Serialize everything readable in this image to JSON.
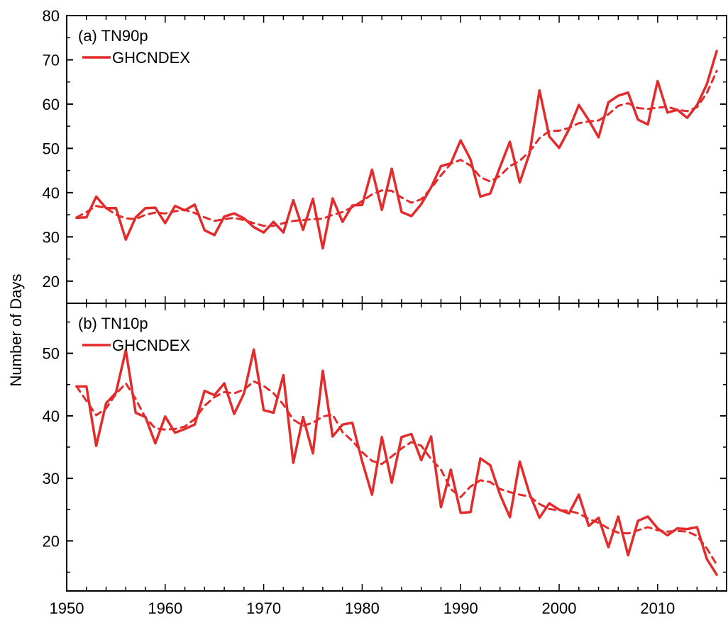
{
  "chart_data": {
    "type": "line",
    "ylabel": "Number of Days",
    "xlim": [
      1950,
      2017
    ],
    "x_ticks": [
      1950,
      1960,
      1970,
      1980,
      1990,
      2000,
      2010
    ],
    "line_color": "#e32b2b",
    "panels": [
      {
        "label": "(a) TN90p",
        "legend": "GHCNDEX",
        "ylim": [
          15,
          80
        ],
        "y_ticks": [
          20,
          30,
          40,
          50,
          60,
          70,
          80
        ],
        "series": [
          {
            "name": "GHCNDEX",
            "style": "solid",
            "x": [
              1951,
              1952,
              1953,
              1954,
              1955,
              1956,
              1957,
              1958,
              1959,
              1960,
              1961,
              1962,
              1963,
              1964,
              1965,
              1966,
              1967,
              1968,
              1969,
              1970,
              1971,
              1972,
              1973,
              1974,
              1975,
              1976,
              1977,
              1978,
              1979,
              1980,
              1981,
              1982,
              1983,
              1984,
              1985,
              1986,
              1987,
              1988,
              1989,
              1990,
              1991,
              1992,
              1993,
              1994,
              1995,
              1996,
              1997,
              1998,
              1999,
              2000,
              2001,
              2002,
              2003,
              2004,
              2005,
              2006,
              2007,
              2008,
              2009,
              2010,
              2011,
              2012,
              2013,
              2014,
              2015,
              2016
            ],
            "values": [
              34.3,
              34.4,
              39.1,
              36.5,
              36.5,
              29.4,
              34.4,
              36.5,
              36.6,
              33.1,
              37.0,
              36.0,
              37.3,
              31.5,
              30.4,
              34.6,
              35.3,
              34.2,
              32.2,
              31.0,
              33.4,
              31.0,
              38.3,
              31.6,
              38.6,
              27.4,
              38.7,
              33.4,
              37.1,
              37.2,
              45.2,
              36.1,
              45.4,
              35.6,
              34.7,
              37.4,
              41.2,
              46.0,
              46.6,
              51.8,
              47.5,
              39.1,
              39.8,
              45.8,
              51.5,
              42.3,
              48.9,
              63.1,
              52.7,
              50.1,
              54.3,
              59.8,
              56.4,
              52.5,
              60.4,
              61.9,
              62.6,
              56.5,
              55.4,
              65.2,
              58.1,
              58.7,
              56.9,
              59.8,
              64.5,
              72.0
            ]
          },
          {
            "name": "",
            "style": "dashed",
            "x": [
              1951,
              1952,
              1953,
              1954,
              1955,
              1956,
              1957,
              1958,
              1959,
              1960,
              1961,
              1962,
              1963,
              1964,
              1965,
              1966,
              1967,
              1968,
              1969,
              1970,
              1971,
              1972,
              1973,
              1974,
              1975,
              1976,
              1977,
              1978,
              1979,
              1980,
              1981,
              1982,
              1983,
              1984,
              1985,
              1986,
              1987,
              1988,
              1989,
              1990,
              1991,
              1992,
              1993,
              1994,
              1995,
              1996,
              1997,
              1998,
              1999,
              2000,
              2001,
              2002,
              2003,
              2004,
              2005,
              2006,
              2007,
              2008,
              2009,
              2010,
              2011,
              2012,
              2013,
              2014,
              2015,
              2016
            ],
            "values": [
              34.4,
              35.6,
              37.0,
              36.5,
              35.0,
              34.2,
              34.0,
              35.0,
              35.5,
              35.3,
              35.8,
              36.1,
              35.4,
              34.4,
              33.6,
              34.0,
              34.3,
              33.8,
              33.1,
              32.5,
              32.5,
              33.1,
              33.6,
              33.8,
              34.0,
              34.1,
              35.0,
              35.6,
              36.7,
              38.1,
              39.6,
              40.5,
              40.4,
              38.9,
              37.7,
              38.5,
              41.0,
              43.9,
              46.5,
              47.4,
              46.1,
              43.5,
              42.5,
              43.8,
              46.0,
              47.2,
              49.3,
              52.3,
              53.9,
              54.0,
              54.6,
              55.7,
              56.1,
              56.3,
              57.7,
              59.6,
              60.2,
              59.1,
              58.9,
              59.2,
              59.4,
              58.7,
              58.4,
              59.3,
              62.5,
              67.5
            ]
          }
        ]
      },
      {
        "label": "(b) TN10p",
        "legend": "GHCNDEX",
        "ylim": [
          12,
          58
        ],
        "y_ticks": [
          20,
          30,
          40,
          50
        ],
        "series": [
          {
            "name": "GHCNDEX",
            "style": "solid",
            "x": [
              1951,
              1952,
              1953,
              1954,
              1955,
              1956,
              1957,
              1958,
              1959,
              1960,
              1961,
              1962,
              1963,
              1964,
              1965,
              1966,
              1967,
              1968,
              1969,
              1970,
              1971,
              1972,
              1973,
              1974,
              1975,
              1976,
              1977,
              1978,
              1979,
              1980,
              1981,
              1982,
              1983,
              1984,
              1985,
              1986,
              1987,
              1988,
              1989,
              1990,
              1991,
              1992,
              1993,
              1994,
              1995,
              1996,
              1997,
              1998,
              1999,
              2000,
              2001,
              2002,
              2003,
              2004,
              2005,
              2006,
              2007,
              2008,
              2009,
              2010,
              2011,
              2012,
              2013,
              2014,
              2015,
              2016
            ],
            "values": [
              44.7,
              44.7,
              35.2,
              42.0,
              43.7,
              50.5,
              40.5,
              39.8,
              35.6,
              39.9,
              37.3,
              37.9,
              38.6,
              44.0,
              43.3,
              45.2,
              40.3,
              43.6,
              50.6,
              40.9,
              40.5,
              46.5,
              32.5,
              39.8,
              34.0,
              47.2,
              36.7,
              38.6,
              38.9,
              32.7,
              27.4,
              36.6,
              29.3,
              36.6,
              37.1,
              32.9,
              36.7,
              25.4,
              31.4,
              24.5,
              24.6,
              33.2,
              32.1,
              27.4,
              23.8,
              32.7,
              27.5,
              23.7,
              26.0,
              25.0,
              24.4,
              27.4,
              22.4,
              23.7,
              19.0,
              23.9,
              17.7,
              23.2,
              23.9,
              22.0,
              20.9,
              22.0,
              21.9,
              22.2,
              17.1,
              14.6
            ]
          },
          {
            "name": "",
            "style": "dashed",
            "x": [
              1951,
              1952,
              1953,
              1954,
              1955,
              1956,
              1957,
              1958,
              1959,
              1960,
              1961,
              1962,
              1963,
              1964,
              1965,
              1966,
              1967,
              1968,
              1969,
              1970,
              1971,
              1972,
              1973,
              1974,
              1975,
              1976,
              1977,
              1978,
              1979,
              1980,
              1981,
              1982,
              1983,
              1984,
              1985,
              1986,
              1987,
              1988,
              1989,
              1990,
              1991,
              1992,
              1993,
              1994,
              1995,
              1996,
              1997,
              1998,
              1999,
              2000,
              2001,
              2002,
              2003,
              2004,
              2005,
              2006,
              2007,
              2008,
              2009,
              2010,
              2011,
              2012,
              2013,
              2014,
              2015,
              2016
            ],
            "values": [
              44.7,
              42.4,
              40.1,
              41.2,
              43.5,
              45.2,
              42.7,
              39.7,
              38.0,
              37.8,
              37.9,
              38.3,
              39.5,
              41.6,
              43.0,
              43.8,
              43.6,
              44.2,
              45.5,
              44.8,
              43.6,
              41.8,
              39.4,
              38.4,
              38.9,
              39.9,
              40.2,
              37.4,
              36.0,
              34.2,
              32.8,
              32.3,
              33.5,
              34.8,
              35.8,
              35.2,
              33.1,
              31.4,
              28.3,
              27.0,
              28.7,
              29.7,
              29.4,
              28.3,
              27.8,
              27.4,
              27.1,
              25.9,
              25.1,
              24.9,
              24.8,
              24.4,
              23.5,
              22.9,
              22.0,
              21.3,
              21.2,
              21.7,
              22.2,
              21.7,
              21.5,
              21.6,
              21.5,
              20.8,
              18.8,
              16.2
            ]
          }
        ]
      }
    ]
  }
}
